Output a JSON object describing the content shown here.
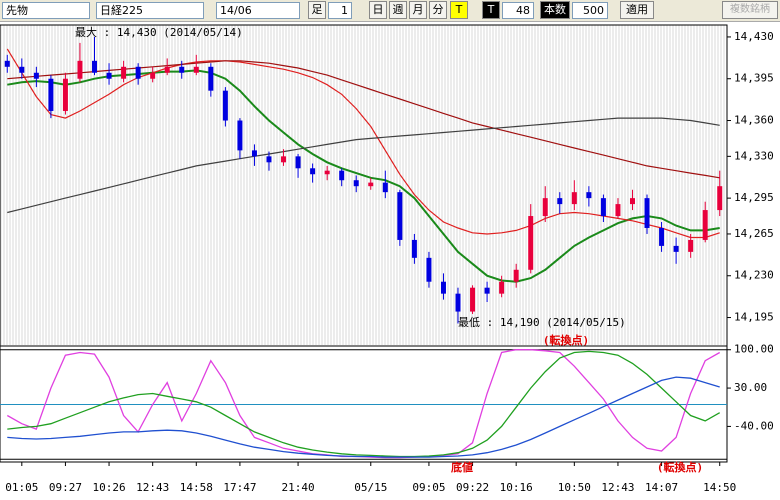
{
  "toolbar": {
    "market": "先物",
    "symbol": "日経225",
    "contract": "14/06",
    "bar_label": "足",
    "bar_size": 1,
    "day": "日",
    "week": "週",
    "month": "月",
    "minute": "分",
    "tick_button": "T",
    "tick_label": "T",
    "count": 48,
    "count_label": "本数",
    "bars": 500,
    "apply": "適用",
    "multi": "複数銘柄"
  },
  "chart_data": [
    {
      "type": "candlestick",
      "open": [
        14410,
        14405,
        14400,
        14395,
        14368,
        14395,
        14410,
        14400,
        14395,
        14405,
        14395,
        14400,
        14405,
        14400,
        14405,
        14385,
        14360,
        14335,
        14330,
        14325,
        14330,
        14320,
        14315,
        14318,
        14310,
        14305,
        14308,
        14300,
        14260,
        14245,
        14225,
        14215,
        14200,
        14220,
        14215,
        14225,
        14235,
        14280,
        14295,
        14290,
        14300,
        14295,
        14280,
        14290,
        14295,
        14270,
        14255,
        14250,
        14260,
        14285
      ],
      "high": [
        14415,
        14412,
        14405,
        14398,
        14400,
        14425,
        14430,
        14408,
        14410,
        14408,
        14405,
        14412,
        14410,
        14415,
        14408,
        14388,
        14362,
        14340,
        14334,
        14336,
        14332,
        14324,
        14322,
        14320,
        14314,
        14312,
        14318,
        14302,
        14265,
        14250,
        14232,
        14220,
        14222,
        14225,
        14230,
        14240,
        14290,
        14305,
        14300,
        14310,
        14305,
        14298,
        14295,
        14302,
        14298,
        14275,
        14262,
        14265,
        14292,
        14318
      ],
      "low": [
        14400,
        14395,
        14388,
        14362,
        14365,
        14392,
        14398,
        14390,
        14392,
        14390,
        14392,
        14398,
        14395,
        14398,
        14380,
        14355,
        14328,
        14322,
        14318,
        14322,
        14312,
        14308,
        14310,
        14305,
        14300,
        14302,
        14295,
        14255,
        14240,
        14220,
        14210,
        14190,
        14198,
        14208,
        14212,
        14220,
        14232,
        14275,
        14282,
        14285,
        14288,
        14275,
        14278,
        14285,
        14265,
        14250,
        14240,
        14245,
        14258,
        14280
      ],
      "close": [
        14405,
        14400,
        14395,
        14368,
        14395,
        14410,
        14400,
        14395,
        14405,
        14395,
        14400,
        14405,
        14400,
        14405,
        14385,
        14360,
        14335,
        14330,
        14325,
        14330,
        14320,
        14315,
        14318,
        14310,
        14305,
        14308,
        14300,
        14260,
        14245,
        14225,
        14215,
        14200,
        14220,
        14215,
        14225,
        14235,
        14280,
        14295,
        14290,
        14300,
        14295,
        14280,
        14290,
        14295,
        14270,
        14255,
        14250,
        14260,
        14285,
        14305
      ],
      "up_color": "#e8003c",
      "down_color": "#0000e0",
      "series": [
        {
          "color": "#1a8a1a",
          "values": [
            14390,
            14392,
            14393,
            14392,
            14390,
            14392,
            14395,
            14397,
            14398,
            14399,
            14400,
            14401,
            14401,
            14402,
            14400,
            14395,
            14385,
            14372,
            14360,
            14350,
            14340,
            14332,
            14325,
            14320,
            14316,
            14312,
            14310,
            14305,
            14295,
            14280,
            14265,
            14250,
            14240,
            14230,
            14226,
            14225,
            14228,
            14235,
            14245,
            14255,
            14262,
            14268,
            14274,
            14278,
            14280,
            14278,
            14272,
            14268,
            14268,
            14270
          ]
        },
        {
          "color": "#e02020",
          "values": [
            14420,
            14400,
            14380,
            14365,
            14362,
            14368,
            14375,
            14382,
            14390,
            14396,
            14400,
            14404,
            14407,
            14409,
            14410,
            14410,
            14409,
            14407,
            14405,
            14403,
            14400,
            14396,
            14390,
            14382,
            14370,
            14355,
            14335,
            14315,
            14298,
            14285,
            14275,
            14270,
            14266,
            14265,
            14266,
            14268,
            14272,
            14278,
            14282,
            14283,
            14282,
            14280,
            14278,
            14276,
            14273,
            14270,
            14266,
            14262,
            14262,
            14266
          ]
        },
        {
          "color": "#a01010",
          "values": [
            14395,
            14396,
            14397,
            14398,
            14399,
            14400,
            14401,
            14402,
            14403,
            14404,
            14405,
            14406,
            14407,
            14408,
            14409,
            14410,
            14410,
            14409,
            14408,
            14406,
            14404,
            14401,
            14398,
            14394,
            14390,
            14386,
            14382,
            14378,
            14374,
            14370,
            14366,
            14362,
            14358,
            14355,
            14352,
            14349,
            14346,
            14343,
            14340,
            14337,
            14334,
            14331,
            14328,
            14325,
            14322,
            14320,
            14318,
            14316,
            14314,
            14312
          ]
        },
        {
          "color": "#404040",
          "values": [
            14283,
            14286,
            14289,
            14292,
            14295,
            14298,
            14301,
            14304,
            14307,
            14310,
            14313,
            14316,
            14319,
            14322,
            14324,
            14326,
            14328,
            14330,
            14332,
            14334,
            14336,
            14338,
            14340,
            14342,
            14344,
            14345,
            14346,
            14347,
            14348,
            14349,
            14350,
            14351,
            14352,
            14353,
            14354,
            14355,
            14356,
            14357,
            14358,
            14359,
            14360,
            14361,
            14362,
            14362,
            14362,
            14362,
            14361,
            14360,
            14358,
            14356
          ]
        }
      ],
      "ylim": [
        14172,
        14440
      ],
      "yticks": [
        {
          "value": 14430,
          "label": "14,430"
        },
        {
          "value": 14395,
          "label": "14,395"
        },
        {
          "value": 14360,
          "label": "14,360"
        },
        {
          "value": 14330,
          "label": "14,330"
        },
        {
          "value": 14295,
          "label": "14,295"
        },
        {
          "value": 14265,
          "label": "14,265"
        },
        {
          "value": 14230,
          "label": "14,230"
        },
        {
          "value": 14195,
          "label": "14,195"
        }
      ],
      "annotations": [
        "最大 : 14,430 (2014/05/14)",
        "最低 : 14,190 (2014/05/15)"
      ]
    },
    {
      "type": "line",
      "categories": [
        null,
        "01:05",
        null,
        null,
        "09:27",
        null,
        null,
        "10:26",
        null,
        null,
        "12:43",
        null,
        null,
        "14:58",
        null,
        null,
        "17:47",
        null,
        null,
        null,
        "21:40",
        null,
        null,
        null,
        null,
        "05/15",
        null,
        null,
        null,
        "09:05",
        null,
        null,
        "09:22",
        null,
        null,
        "10:16",
        null,
        null,
        null,
        "10:50",
        null,
        null,
        "12:43",
        null,
        null,
        "14:07",
        null,
        null,
        null,
        "14:50"
      ],
      "series": [
        {
          "color": "#e040e0",
          "values": [
            -20,
            -35,
            -45,
            30,
            90,
            95,
            92,
            50,
            -20,
            -50,
            0,
            40,
            -30,
            20,
            80,
            40,
            -20,
            -60,
            -70,
            -80,
            -85,
            -90,
            -92,
            -95,
            -95,
            -96,
            -97,
            -97,
            -96,
            -95,
            -93,
            -90,
            -70,
            20,
            95,
            100,
            100,
            98,
            95,
            70,
            40,
            10,
            -30,
            -60,
            -80,
            -85,
            -60,
            20,
            80,
            95
          ]
        },
        {
          "color": "#20a020",
          "values": [
            -45,
            -42,
            -40,
            -35,
            -25,
            -15,
            -5,
            5,
            12,
            18,
            20,
            15,
            10,
            5,
            -5,
            -20,
            -35,
            -50,
            -60,
            -70,
            -78,
            -83,
            -87,
            -90,
            -92,
            -93,
            -94,
            -95,
            -95,
            -94,
            -92,
            -88,
            -80,
            -65,
            -40,
            -5,
            30,
            60,
            85,
            95,
            97,
            95,
            90,
            75,
            55,
            30,
            5,
            -20,
            -30,
            -15
          ]
        },
        {
          "color": "#2050d0",
          "values": [
            -60,
            -62,
            -63,
            -62,
            -60,
            -58,
            -55,
            -52,
            -50,
            -50,
            -48,
            -47,
            -48,
            -52,
            -58,
            -65,
            -72,
            -78,
            -82,
            -86,
            -89,
            -91,
            -93,
            -94,
            -95,
            -95,
            -96,
            -96,
            -96,
            -96,
            -95,
            -94,
            -92,
            -88,
            -82,
            -74,
            -64,
            -52,
            -40,
            -28,
            -16,
            -4,
            8,
            20,
            32,
            44,
            50,
            48,
            40,
            32
          ]
        }
      ],
      "ylim": [
        -105,
        105
      ],
      "yticks": [
        {
          "value": 100,
          "label": "100.00"
        },
        {
          "value": 30,
          "label": "30.00"
        },
        {
          "value": -40,
          "label": "-40.00"
        }
      ],
      "hlines": [
        100,
        0,
        -100
      ],
      "annotations": [
        "(転換点)",
        "底値",
        "(転換点)"
      ]
    }
  ]
}
